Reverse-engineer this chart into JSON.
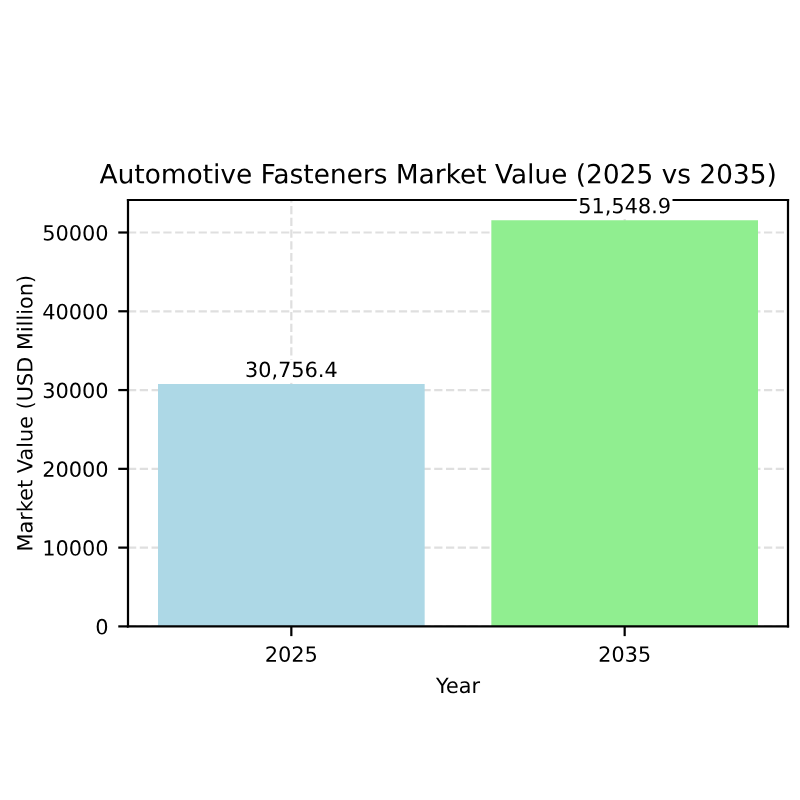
{
  "chart_data": {
    "type": "bar",
    "title": "Automotive Fasteners Market Value (2025 vs 2035)",
    "xlabel": "Year",
    "ylabel": "Market Value (USD Million)",
    "categories": [
      "2025",
      "2035"
    ],
    "values": [
      30756.4,
      51548.9
    ],
    "colors": [
      "#add8e6",
      "#90ee90"
    ],
    "value_labels": [
      "30,756.4",
      "51,548.9"
    ],
    "ylim": [
      0,
      54126
    ],
    "yticks": [
      0,
      10000,
      20000,
      30000,
      40000,
      50000
    ],
    "grid": true
  }
}
